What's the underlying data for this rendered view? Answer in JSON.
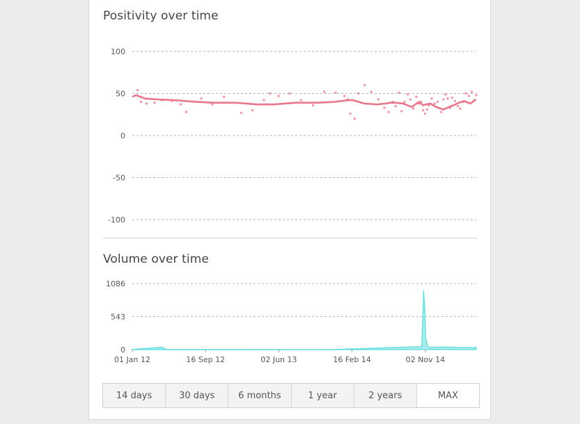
{
  "positivity": {
    "title": "Positivity over time"
  },
  "volume": {
    "title": "Volume over time"
  },
  "range_buttons": [
    "14 days",
    "30 days",
    "6 months",
    "1 year",
    "2 years",
    "MAX"
  ],
  "active_range": "MAX",
  "colors": {
    "positivity": "#e8758b",
    "volume": "#5ddcdc",
    "grid": "#9a9a9a"
  },
  "chart_data": [
    {
      "type": "line",
      "title": "Positivity over time",
      "ylim": [
        -100,
        100
      ],
      "yticks": [
        100,
        50,
        0,
        -50,
        -100
      ],
      "grid": true,
      "series": [
        {
          "x": [
            "2012-01-01",
            "2012-01-15",
            "2012-02-15",
            "2012-04-01",
            "2012-06-01",
            "2012-08-15",
            "2012-10-15",
            "2013-01-01",
            "2013-03-15",
            "2013-05-15",
            "2013-08-01",
            "2013-10-15",
            "2013-12-15",
            "2014-02-01",
            "2014-02-20",
            "2014-04-01",
            "2014-05-15",
            "2014-06-15",
            "2014-07-01",
            "2014-07-20",
            "2014-08-15",
            "2014-09-15",
            "2014-10-10",
            "2014-10-25",
            "2014-11-05",
            "2014-11-20",
            "2014-12-10",
            "2015-01-05",
            "2015-01-25",
            "2015-02-10",
            "2015-03-01",
            "2015-03-20",
            "2015-04-10",
            "2015-04-30"
          ],
          "values": [
            46,
            48,
            44,
            43,
            42,
            40,
            39,
            39,
            37,
            37,
            39,
            39,
            40,
            42,
            42,
            38,
            37,
            38,
            39,
            39,
            38,
            34,
            40,
            36,
            37,
            38,
            34,
            31,
            34,
            36,
            39,
            41,
            38,
            43
          ]
        },
        {
          "type": "scatter",
          "x": [
            "2012-01-20",
            "2012-02-01",
            "2012-02-20",
            "2012-03-20",
            "2012-04-15",
            "2012-05-20",
            "2012-06-20",
            "2012-07-10",
            "2012-09-01",
            "2012-10-10",
            "2012-11-20",
            "2013-01-20",
            "2013-03-01",
            "2013-04-10",
            "2013-05-01",
            "2013-06-01",
            "2013-07-10",
            "2013-08-20",
            "2013-10-01",
            "2013-11-10",
            "2013-12-20",
            "2014-01-20",
            "2014-02-01",
            "2014-02-10",
            "2014-02-25",
            "2014-03-10",
            "2014-04-01",
            "2014-04-25",
            "2014-05-20",
            "2014-06-10",
            "2014-06-25",
            "2014-07-10",
            "2014-07-20",
            "2014-08-01",
            "2014-08-10",
            "2014-08-20",
            "2014-09-01",
            "2014-09-10",
            "2014-09-20",
            "2014-10-01",
            "2014-10-10",
            "2014-10-18",
            "2014-10-25",
            "2014-11-01",
            "2014-11-08",
            "2014-11-15",
            "2014-11-25",
            "2014-12-05",
            "2014-12-15",
            "2014-12-28",
            "2015-01-05",
            "2015-01-12",
            "2015-01-20",
            "2015-01-28",
            "2015-02-05",
            "2015-02-15",
            "2015-02-25",
            "2015-03-05",
            "2015-03-15",
            "2015-03-25",
            "2015-04-05",
            "2015-04-15",
            "2015-04-25",
            "2015-05-01"
          ],
          "values": [
            54,
            40,
            38,
            39,
            42,
            41,
            37,
            28,
            44,
            37,
            46,
            27,
            30,
            42,
            50,
            47,
            50,
            42,
            36,
            52,
            51,
            47,
            43,
            26,
            20,
            50,
            60,
            52,
            43,
            33,
            28,
            40,
            35,
            51,
            29,
            40,
            49,
            43,
            32,
            46,
            38,
            40,
            30,
            26,
            31,
            36,
            44,
            38,
            40,
            28,
            43,
            49,
            44,
            33,
            45,
            41,
            35,
            32,
            40,
            50,
            47,
            52,
            42,
            48
          ]
        }
      ]
    },
    {
      "type": "area",
      "title": "Volume over time",
      "ylim": [
        0,
        1086
      ],
      "yticks": [
        1086,
        543,
        0
      ],
      "xticks": [
        "01 Jan 12",
        "16 Sep 12",
        "02 Jun 13",
        "16 Feb 14",
        "02 Nov 14"
      ],
      "grid": true,
      "series": [
        {
          "x": [
            "2012-01-01",
            "2012-04-15",
            "2012-05-01",
            "2013-12-01",
            "2014-02-01",
            "2014-02-28",
            "2014-06-01",
            "2014-10-20",
            "2014-10-27",
            "2014-11-01",
            "2014-11-03",
            "2014-11-10",
            "2014-11-20",
            "2015-01-15",
            "2015-03-01",
            "2015-05-01"
          ],
          "values": [
            4,
            40,
            5,
            2,
            10,
            14,
            30,
            50,
            980,
            620,
            200,
            60,
            40,
            45,
            38,
            35
          ]
        }
      ]
    }
  ]
}
